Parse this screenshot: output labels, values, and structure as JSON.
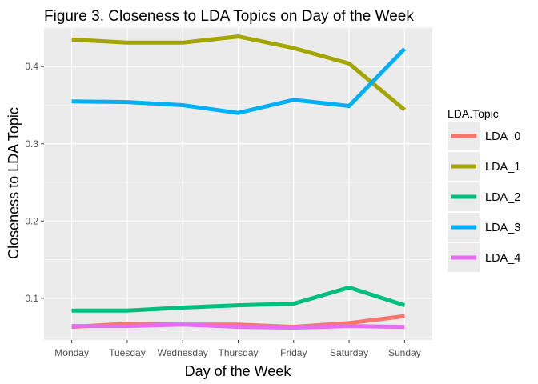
{
  "chart_data": {
    "type": "line",
    "title": "Figure 3. Closeness to LDA Topics on Day of the Week",
    "xlabel": "Day of the Week",
    "ylabel": "Closeness to LDA Topic",
    "categories": [
      "Monday",
      "Tuesday",
      "Wednesday",
      "Thursday",
      "Friday",
      "Saturday",
      "Sunday"
    ],
    "y_ticks": [
      "0.1",
      "0.2",
      "0.3",
      "0.4"
    ],
    "ylim": [
      0.046,
      0.451
    ],
    "grid": true,
    "legend": {
      "title": "LDA.Topic",
      "position": "right"
    },
    "series": [
      {
        "name": "LDA_0",
        "color": "#F8766D",
        "values": [
          0.063,
          0.067,
          0.066,
          0.066,
          0.063,
          0.068,
          0.077
        ]
      },
      {
        "name": "LDA_1",
        "color": "#A3A500",
        "values": [
          0.435,
          0.431,
          0.431,
          0.439,
          0.424,
          0.404,
          0.344
        ]
      },
      {
        "name": "LDA_2",
        "color": "#00BF7D",
        "values": [
          0.084,
          0.084,
          0.088,
          0.091,
          0.093,
          0.114,
          0.091
        ]
      },
      {
        "name": "LDA_3",
        "color": "#00B0F6",
        "values": [
          0.355,
          0.354,
          0.35,
          0.34,
          0.357,
          0.349,
          0.423
        ]
      },
      {
        "name": "LDA_4",
        "color": "#E76BF3",
        "values": [
          0.064,
          0.064,
          0.066,
          0.063,
          0.062,
          0.064,
          0.063
        ]
      }
    ]
  }
}
